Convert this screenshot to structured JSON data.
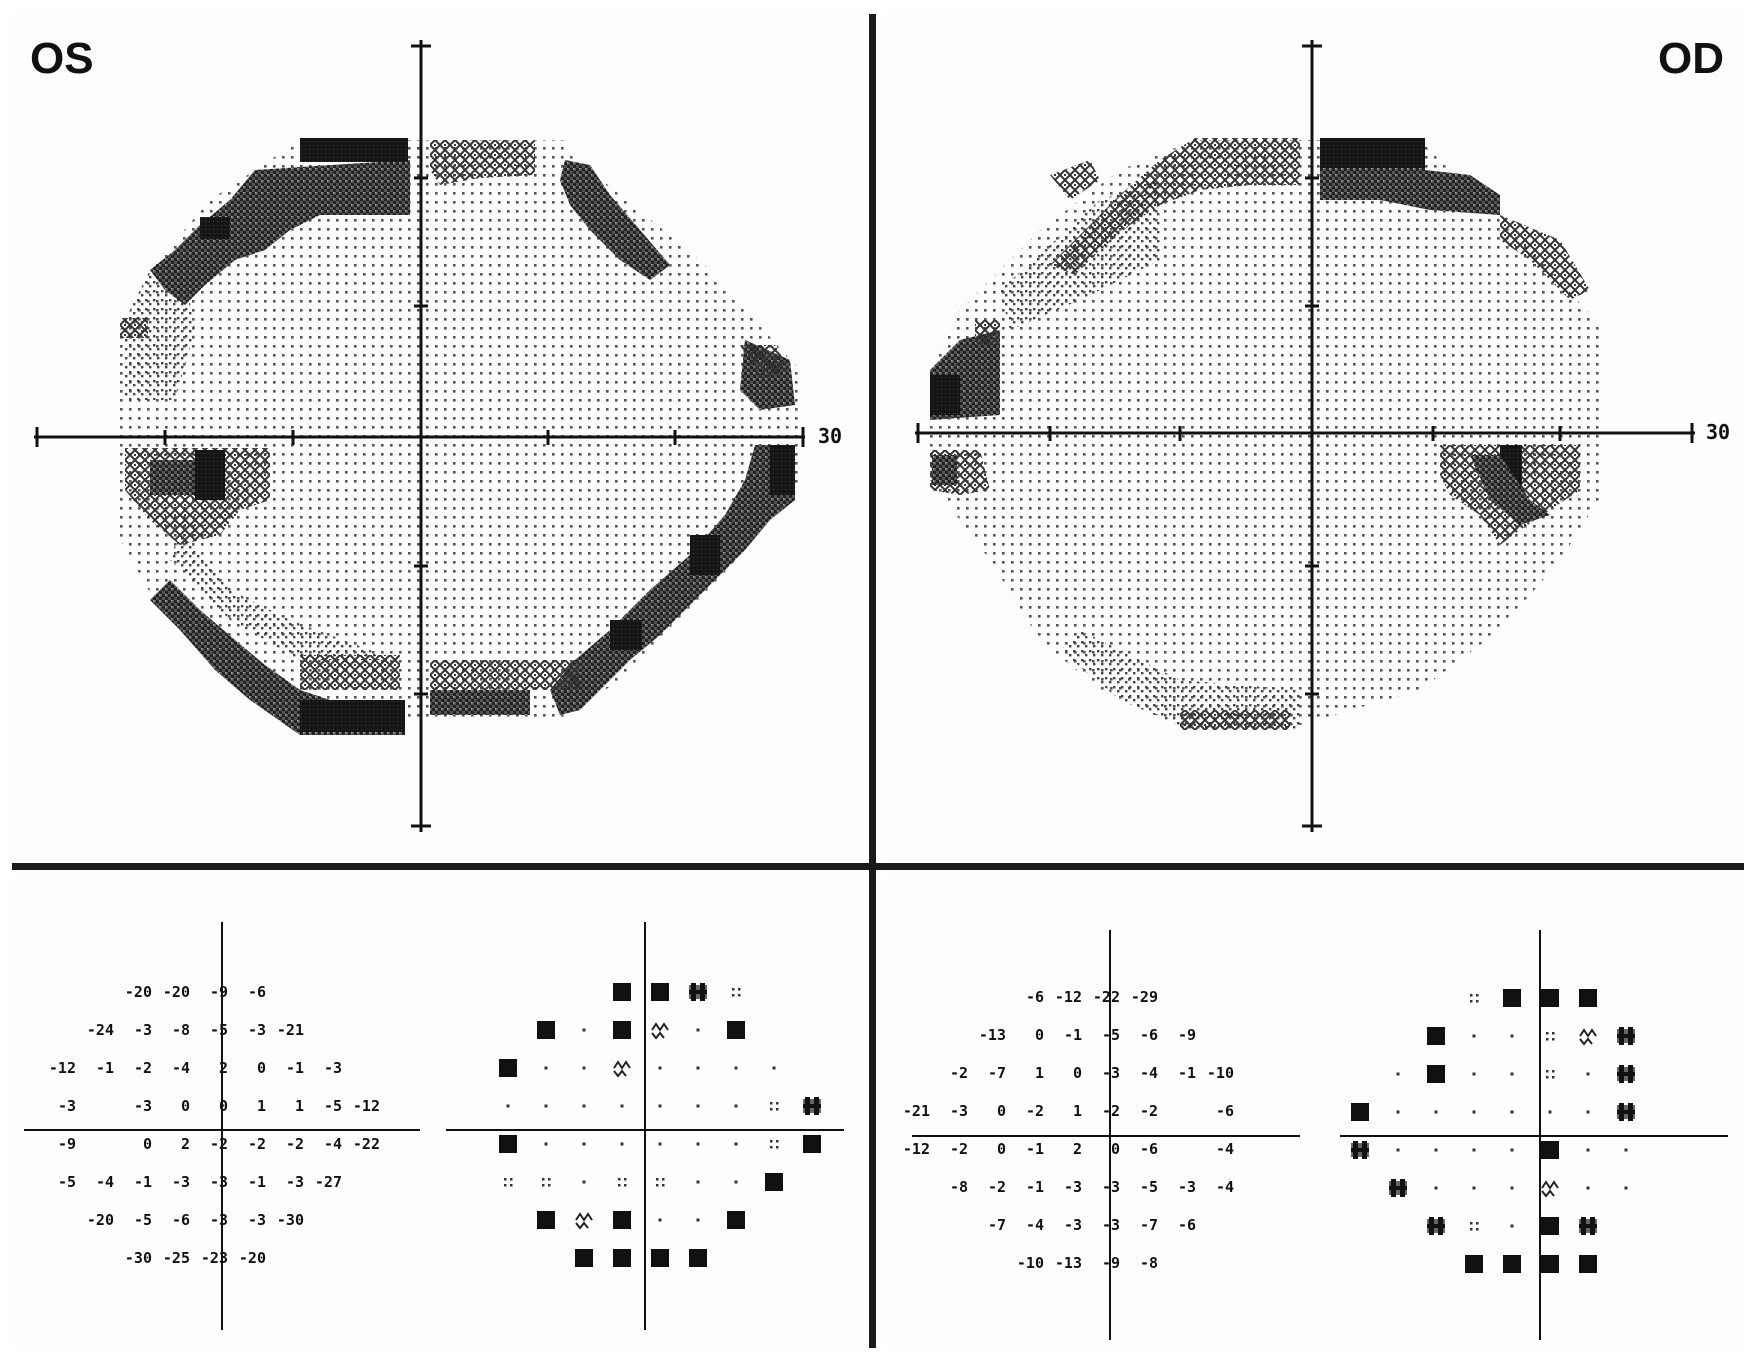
{
  "labels": {
    "left_eye": "OS",
    "right_eye": "OD",
    "scale_left": "30",
    "scale_right": "30"
  },
  "os": {
    "deviations": [
      [
        null,
        null,
        null,
        "-20",
        "-20",
        "-9",
        "-6",
        null,
        null,
        null
      ],
      [
        null,
        null,
        "-24",
        "-3",
        "-8",
        "-5",
        "-3",
        "-21",
        null,
        null
      ],
      [
        null,
        "-12",
        "-1",
        "-2",
        "-4",
        "2",
        "0",
        "-1",
        "-3",
        null
      ],
      [
        null,
        "-3",
        null,
        "-3",
        "0",
        "0",
        "1",
        "1",
        "-5",
        "-12"
      ],
      [
        null,
        "-9",
        null,
        "0",
        "2",
        "-2",
        "-2",
        "-2",
        "-4",
        "-22"
      ],
      [
        null,
        "-5",
        "-4",
        "-1",
        "-3",
        "-3",
        "-1",
        "-3",
        "-27",
        null
      ],
      [
        null,
        null,
        "-20",
        "-5",
        "-6",
        "-3",
        "-3",
        "-30",
        null,
        null
      ],
      [
        null,
        null,
        null,
        "-30",
        "-25",
        "-23",
        "-20",
        null,
        null,
        null
      ]
    ],
    "probability": [
      [
        null,
        null,
        null,
        "sq",
        "sq",
        "st",
        "dd",
        null,
        null,
        null
      ],
      [
        null,
        "sq",
        "dt",
        "sq",
        "hx",
        "dt",
        "sq",
        null,
        null,
        null
      ],
      [
        "sq",
        "dt",
        "dt",
        "hx",
        "dt",
        "dt",
        "dt",
        "dt",
        null,
        null
      ],
      [
        "dt",
        "dt",
        "dt",
        "dt",
        "dt",
        "dt",
        "dt",
        "dd",
        "st",
        null
      ],
      [
        "sq",
        "dt",
        "dt",
        "dt",
        "dt",
        "dt",
        "dt",
        "dd",
        "sq",
        null
      ],
      [
        "dd",
        "dd",
        "dt",
        "dd",
        "dd",
        "dt",
        "dt",
        "sq",
        null,
        null
      ],
      [
        null,
        "sq",
        "hx",
        "sq",
        "dt",
        "dt",
        "sq",
        null,
        null,
        null
      ],
      [
        null,
        null,
        "sq",
        "sq",
        "sq",
        "sq",
        null,
        null,
        null,
        null
      ]
    ]
  },
  "od": {
    "deviations": [
      [
        null,
        null,
        null,
        "-6",
        "-12",
        "-22",
        "-29",
        null,
        null,
        null
      ],
      [
        null,
        null,
        "-13",
        "0",
        "-1",
        "-5",
        "-6",
        "-9",
        null,
        null
      ],
      [
        null,
        "-2",
        "-7",
        "1",
        "0",
        "-3",
        "-4",
        "-1",
        "-10",
        null
      ],
      [
        "-21",
        "-3",
        "0",
        "-2",
        "1",
        "-2",
        "-2",
        null,
        "-6",
        null
      ],
      [
        "-12",
        "-2",
        "0",
        "-1",
        "2",
        "0",
        "-6",
        null,
        "-4",
        null
      ],
      [
        null,
        "-8",
        "-2",
        "-1",
        "-3",
        "-3",
        "-5",
        "-3",
        "-4",
        null
      ],
      [
        null,
        null,
        "-7",
        "-4",
        "-3",
        "-3",
        "-7",
        "-6",
        null,
        null
      ],
      [
        null,
        null,
        null,
        "-10",
        "-13",
        "-9",
        "-8",
        null,
        null,
        null
      ]
    ],
    "probability": [
      [
        null,
        null,
        null,
        "dd",
        "sq",
        "sq",
        "sq",
        null,
        null,
        null
      ],
      [
        null,
        null,
        "sq",
        "dt",
        "dt",
        "dd",
        "hx",
        "st",
        null,
        null
      ],
      [
        null,
        "dt",
        "sq",
        "dt",
        "dt",
        "dd",
        "dt",
        "st",
        null,
        null
      ],
      [
        "sq",
        "dt",
        "dt",
        "dt",
        "dt",
        "dt",
        "dt",
        "st",
        null,
        null
      ],
      [
        "st",
        "dt",
        "dt",
        "dt",
        "dt",
        "sq",
        "dt",
        "dt",
        null,
        null
      ],
      [
        null,
        "st",
        "dt",
        "dt",
        "dt",
        "hx",
        "dt",
        "dt",
        null,
        null
      ],
      [
        null,
        null,
        "st",
        "dd",
        "dt",
        "sq",
        "st",
        null,
        null,
        null
      ],
      [
        null,
        null,
        null,
        "sq",
        "sq",
        "sq",
        "sq",
        null,
        null,
        null
      ]
    ]
  },
  "colors": {
    "ink": "#111111",
    "dark_gray": "#444444",
    "mid_gray": "#777777",
    "light_dot": "#666666",
    "background": "#ffffff"
  }
}
